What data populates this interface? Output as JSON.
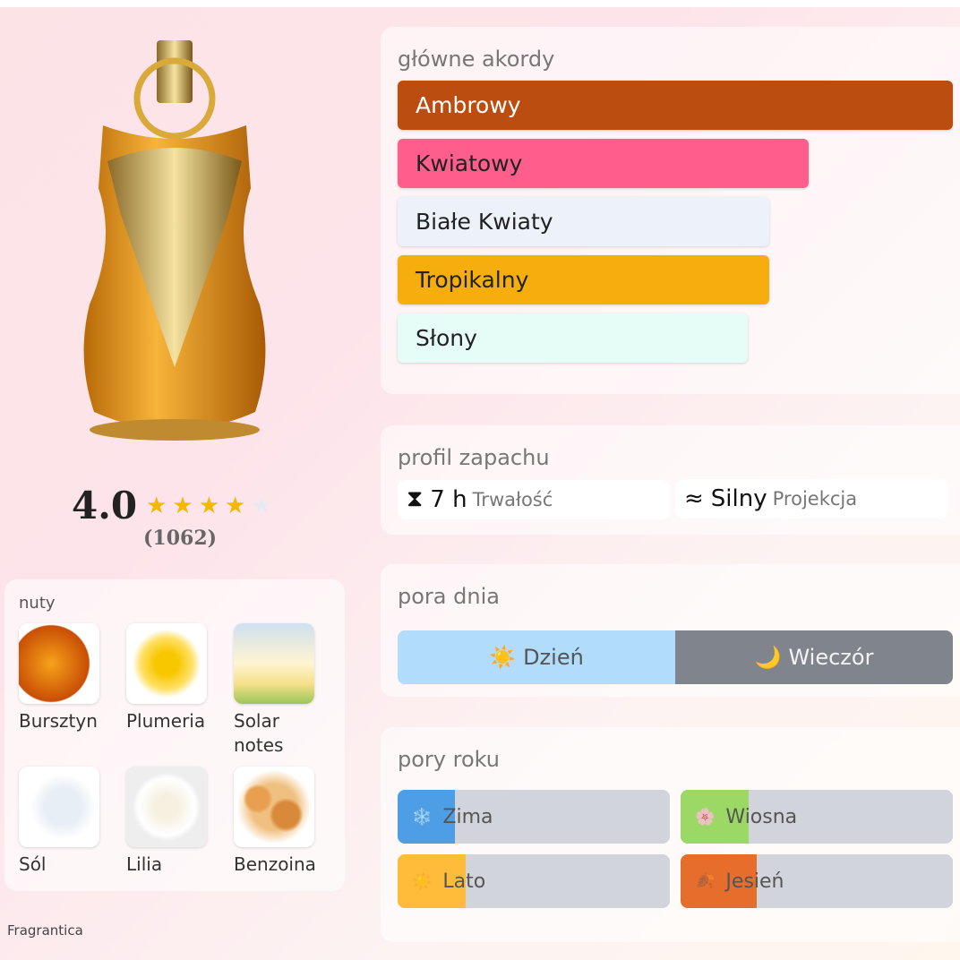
{
  "rating": {
    "score": "4.0",
    "stars": 4,
    "max_stars": 5,
    "count": "(1062)"
  },
  "notes": {
    "title": "nuty",
    "items": [
      {
        "label": "Bursztyn",
        "icon": "amber-image"
      },
      {
        "label": "Plumeria",
        "icon": "plumeria-image"
      },
      {
        "label": "Solar notes",
        "icon": "solar-image"
      },
      {
        "label": "Sól",
        "icon": "salt-image"
      },
      {
        "label": "Lilia",
        "icon": "lily-image"
      },
      {
        "label": "Benzoina",
        "icon": "benzoin-image"
      }
    ]
  },
  "credit": "Fragrantica",
  "accords": {
    "title": "główne akordy",
    "items": [
      {
        "label": "Ambrowy",
        "percent": 100,
        "color": "#bc4d10",
        "text": "#ffffff"
      },
      {
        "label": "Kwiatowy",
        "percent": 74,
        "color": "#fe5e8c",
        "text": "#222222"
      },
      {
        "label": "Białe Kwiaty",
        "percent": 67,
        "color": "#edf2fa",
        "text": "#222222"
      },
      {
        "label": "Tropikalny",
        "percent": 67,
        "color": "#f5ae0d",
        "text": "#222222"
      },
      {
        "label": "Słony",
        "percent": 63,
        "color": "#e6fcf6",
        "text": "#222222"
      }
    ]
  },
  "profile": {
    "title": "profil zapachu",
    "longevity": {
      "icon": "hourglass-icon",
      "value": "7 h",
      "label": "Trwałość"
    },
    "sillage": {
      "icon": "waves-icon",
      "value": "Silny",
      "label": "Projekcja"
    }
  },
  "daytime": {
    "title": "pora dnia",
    "day": {
      "label": "Dzień",
      "percent": 50,
      "color": "#b1dcfb"
    },
    "night": {
      "label": "Wieczór",
      "percent": 50,
      "color": "#80848c"
    }
  },
  "seasons": {
    "title": "pory roku",
    "items": [
      {
        "label": "Zima",
        "icon": "❄️",
        "percent": 21,
        "color": "#4d9ee4"
      },
      {
        "label": "Wiosna",
        "icon": "🌸",
        "percent": 25,
        "color": "#9bd865"
      },
      {
        "label": "Lato",
        "icon": "☀️",
        "percent": 25,
        "color": "#ffbb3a"
      },
      {
        "label": "Jesień",
        "icon": "🍂",
        "percent": 28,
        "color": "#e66d2c"
      }
    ]
  }
}
